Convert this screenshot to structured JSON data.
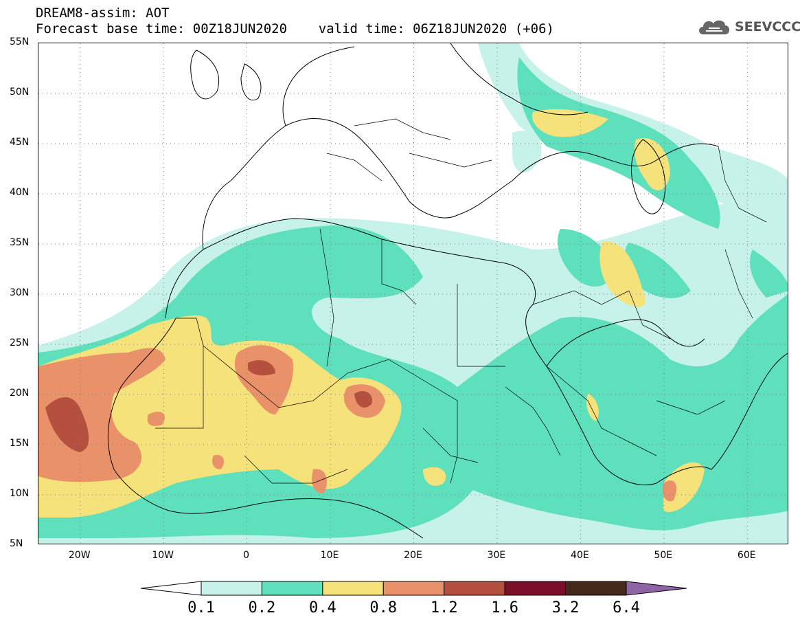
{
  "header": {
    "title": "DREAM8-assim: AOT",
    "subtitle": "Forecast base time: 00Z18JUN2020    valid time: 06Z18JUN2020 (+06)"
  },
  "logo": {
    "text": "SEEVCCC",
    "icon": "cloud-icon"
  },
  "map": {
    "lat_labels": [
      "55N",
      "50N",
      "45N",
      "40N",
      "35N",
      "30N",
      "25N",
      "20N",
      "15N",
      "10N",
      "5N"
    ],
    "lon_labels": [
      "20W",
      "10W",
      "0",
      "10E",
      "20E",
      "30E",
      "40E",
      "50E",
      "60E"
    ],
    "lon_range": [
      -25,
      65
    ],
    "lat_range": [
      5,
      55
    ],
    "variable": "AOT"
  },
  "colorbar": {
    "labels": [
      "0.1",
      "0.2",
      "0.4",
      "0.8",
      "1.2",
      "1.6",
      "3.2",
      "6.4"
    ],
    "colors": [
      "#ffffff",
      "#c6f2ea",
      "#5ee0bc",
      "#f6e27a",
      "#e9926a",
      "#b6503e",
      "#7a0e28",
      "#45291a",
      "#8e64a6"
    ]
  }
}
